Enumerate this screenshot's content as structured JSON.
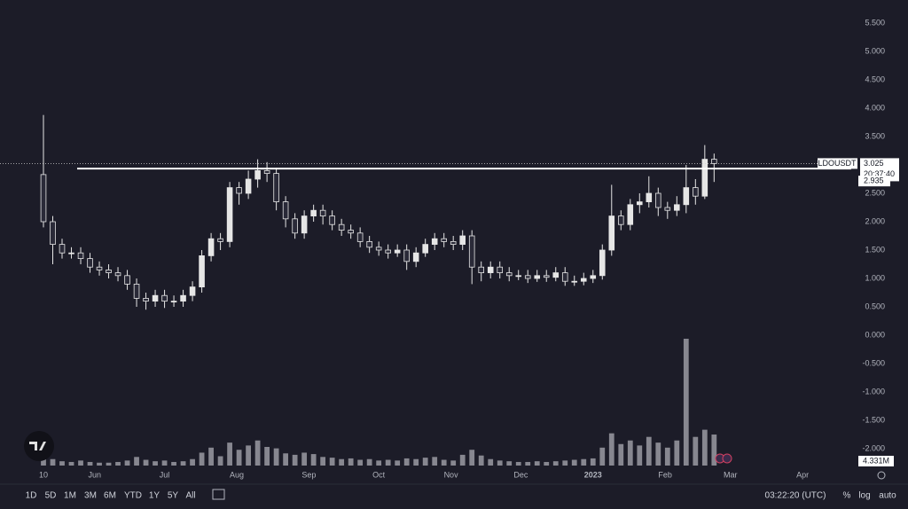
{
  "chart_data": {
    "type": "candlestick",
    "grid": false,
    "x": [
      0,
      4,
      8,
      12,
      16,
      20,
      24,
      28,
      32,
      36,
      40,
      44,
      48,
      52,
      56,
      60,
      64,
      68,
      72,
      76,
      80,
      84,
      88,
      92,
      96,
      100,
      104,
      108,
      112,
      116,
      120,
      124,
      128,
      132,
      136,
      140,
      144,
      148,
      152,
      156,
      160,
      164,
      168,
      172,
      176,
      180,
      184,
      188,
      192,
      196,
      200,
      204,
      208,
      212,
      216,
      220,
      224,
      228,
      232,
      236,
      240,
      244,
      248,
      252,
      256,
      260,
      264,
      268,
      272,
      276,
      280,
      284,
      288
    ],
    "xlim": [
      -18.66,
      346.9
    ],
    "xticks": [
      {
        "value": 0,
        "label": "10"
      },
      {
        "value": 22,
        "label": "Jun"
      },
      {
        "value": 52,
        "label": "Jul"
      },
      {
        "value": 83,
        "label": "Aug"
      },
      {
        "value": 114,
        "label": "Sep"
      },
      {
        "value": 144,
        "label": "Oct"
      },
      {
        "value": 175,
        "label": "Nov"
      },
      {
        "value": 205,
        "label": "Dec"
      },
      {
        "value": 236,
        "label": "2023"
      },
      {
        "value": 267,
        "label": "Feb"
      },
      {
        "value": 295,
        "label": "Mar"
      },
      {
        "value": 326,
        "label": "Apr"
      }
    ],
    "ylim": [
      -2.609,
      5.906
    ],
    "yticks": [
      {
        "value": 5.5,
        "label": "5.500"
      },
      {
        "value": 5,
        "label": "5.000"
      },
      {
        "value": 4.5,
        "label": "4.500"
      },
      {
        "value": 4,
        "label": "4.000"
      },
      {
        "value": 3.5,
        "label": "3.500"
      },
      {
        "value": 3,
        "label": "3.000"
      },
      {
        "value": 2.5,
        "label": "2.500"
      },
      {
        "value": 2,
        "label": "2.000"
      },
      {
        "value": 1.5,
        "label": "1.500"
      },
      {
        "value": 1,
        "label": "1.000"
      },
      {
        "value": 0.5,
        "label": "0.500"
      },
      {
        "value": 0,
        "label": "0.000"
      },
      {
        "value": -0.5,
        "label": "-0.500"
      },
      {
        "value": -1,
        "label": "-1.000"
      },
      {
        "value": -1.5,
        "label": "-1.500"
      },
      {
        "value": -2,
        "label": "-2.000"
      }
    ],
    "series": [
      {
        "name": "LDOUSDT",
        "up_color": "#e6e6e6",
        "down_color": "#2a2a38",
        "volume_color": "#9a9aa2",
        "open": [
          2.83,
          2.0,
          1.6,
          1.45,
          1.45,
          1.35,
          1.2,
          1.15,
          1.1,
          1.05,
          0.9,
          0.65,
          0.6,
          0.7,
          0.6,
          0.6,
          0.7,
          0.85,
          1.4,
          1.7,
          1.65,
          2.6,
          2.5,
          2.75,
          2.9,
          2.85,
          2.35,
          2.05,
          1.8,
          2.1,
          2.2,
          2.1,
          1.95,
          1.85,
          1.8,
          1.65,
          1.55,
          1.5,
          1.45,
          1.5,
          1.3,
          1.45,
          1.6,
          1.7,
          1.65,
          1.6,
          1.75,
          1.2,
          1.1,
          1.2,
          1.1,
          1.05,
          1.05,
          1.0,
          1.05,
          1.02,
          1.1,
          0.95,
          0.95,
          1.0,
          1.05,
          1.5,
          2.1,
          1.95,
          2.3,
          2.35,
          2.5,
          2.25,
          2.2,
          2.3,
          2.6,
          2.45,
          3.1
        ],
        "high": [
          3.88,
          2.1,
          1.7,
          1.55,
          1.55,
          1.45,
          1.3,
          1.25,
          1.2,
          1.15,
          1.0,
          0.75,
          0.8,
          0.8,
          0.7,
          0.8,
          0.95,
          1.5,
          1.8,
          1.8,
          2.7,
          2.7,
          2.9,
          3.1,
          3.05,
          2.95,
          2.45,
          2.15,
          2.2,
          2.3,
          2.3,
          2.2,
          2.05,
          1.95,
          1.9,
          1.75,
          1.65,
          1.6,
          1.6,
          1.6,
          1.55,
          1.7,
          1.8,
          1.8,
          1.75,
          1.85,
          1.85,
          1.3,
          1.3,
          1.3,
          1.2,
          1.15,
          1.15,
          1.15,
          1.15,
          1.2,
          1.2,
          1.05,
          1.1,
          1.15,
          1.6,
          2.65,
          2.2,
          2.4,
          2.5,
          2.8,
          2.6,
          2.35,
          2.45,
          3.0,
          2.75,
          3.35,
          3.2
        ],
        "low": [
          1.9,
          1.25,
          1.35,
          1.35,
          1.25,
          1.1,
          1.05,
          1.0,
          0.95,
          0.8,
          0.5,
          0.45,
          0.5,
          0.48,
          0.5,
          0.5,
          0.6,
          0.75,
          1.3,
          1.5,
          1.55,
          2.3,
          2.4,
          2.6,
          2.7,
          2.2,
          1.9,
          1.7,
          1.7,
          2.0,
          1.95,
          1.85,
          1.75,
          1.7,
          1.55,
          1.45,
          1.4,
          1.35,
          1.38,
          1.15,
          1.2,
          1.38,
          1.5,
          1.55,
          1.5,
          1.5,
          0.9,
          0.95,
          1.0,
          1.0,
          0.95,
          0.97,
          0.92,
          0.94,
          0.94,
          0.95,
          0.87,
          0.87,
          0.88,
          0.92,
          0.98,
          1.4,
          1.85,
          1.85,
          2.15,
          2.25,
          2.1,
          2.05,
          2.1,
          2.15,
          2.3,
          2.4,
          2.7
        ],
        "close": [
          2.0,
          1.6,
          1.45,
          1.45,
          1.35,
          1.2,
          1.15,
          1.1,
          1.05,
          0.9,
          0.65,
          0.6,
          0.7,
          0.6,
          0.6,
          0.7,
          0.85,
          1.4,
          1.7,
          1.65,
          2.6,
          2.5,
          2.75,
          2.9,
          2.85,
          2.35,
          2.05,
          1.8,
          2.1,
          2.2,
          2.1,
          1.95,
          1.85,
          1.8,
          1.65,
          1.55,
          1.5,
          1.45,
          1.5,
          1.3,
          1.45,
          1.6,
          1.7,
          1.65,
          1.6,
          1.75,
          1.2,
          1.1,
          1.2,
          1.1,
          1.05,
          1.05,
          1.0,
          1.05,
          1.02,
          1.1,
          0.95,
          0.95,
          1.0,
          1.05,
          1.5,
          2.1,
          1.95,
          2.3,
          2.35,
          2.5,
          2.25,
          2.2,
          2.3,
          2.6,
          2.45,
          3.1,
          3.025
        ],
        "volume": [
          2800000,
          900000,
          600000,
          500000,
          700000,
          500000,
          400000,
          400000,
          500000,
          700000,
          1200000,
          800000,
          600000,
          700000,
          500000,
          600000,
          900000,
          1800000,
          2500000,
          1300000,
          3200000,
          2200000,
          2800000,
          3500000,
          2600000,
          2400000,
          1700000,
          1500000,
          1800000,
          1600000,
          1200000,
          1100000,
          900000,
          1000000,
          800000,
          900000,
          700000,
          800000,
          700000,
          1000000,
          900000,
          1100000,
          1200000,
          800000,
          700000,
          1500000,
          2200000,
          1400000,
          900000,
          700000,
          600000,
          500000,
          500000,
          600000,
          500000,
          600000,
          700000,
          800000,
          900000,
          1000000,
          2500000,
          4500000,
          3000000,
          3500000,
          2800000,
          4000000,
          3200000,
          2500000,
          3500000,
          17700000,
          4000000,
          5000000,
          4331000
        ],
        "last_volume_label": "4.331M"
      }
    ],
    "horizontal_line": 2.935,
    "countdown": "20:37:40"
  },
  "toolbar": {
    "ranges": [
      "1D",
      "5D",
      "1M",
      "3M",
      "6M",
      "YTD",
      "1Y",
      "5Y",
      "All"
    ],
    "clock": "03:22:20 (UTC)",
    "percent": "%",
    "log": "log",
    "auto": "auto"
  }
}
